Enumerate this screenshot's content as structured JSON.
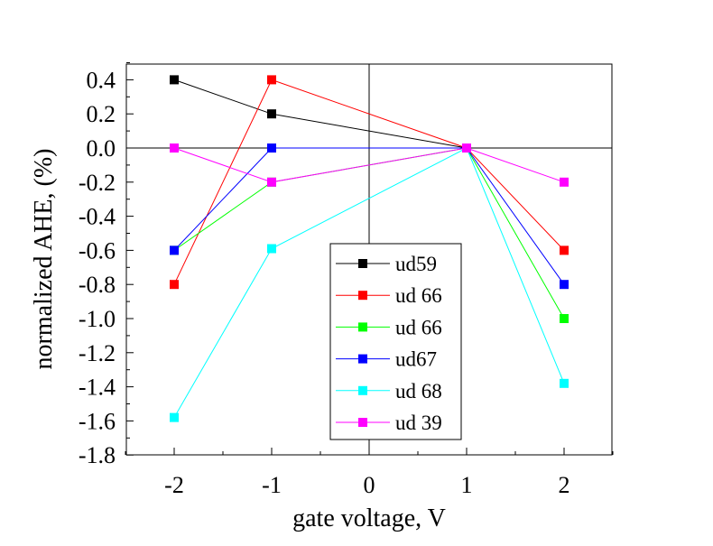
{
  "chart_data": {
    "type": "line",
    "title": "",
    "xlabel": "gate voltage, V",
    "ylabel": "normalized AHE, (%)",
    "xlim": [
      -2.5,
      2.5
    ],
    "ylim": [
      -1.8,
      0.5
    ],
    "xticks": [
      -2,
      -1,
      0,
      1,
      2
    ],
    "xtick_labels": [
      "-2",
      "-1",
      "0",
      "1",
      "2"
    ],
    "yticks": [
      0.4,
      0.2,
      0.0,
      -0.2,
      -0.4,
      -0.6,
      -0.8,
      -1.0,
      -1.2,
      -1.4,
      -1.6,
      -1.8
    ],
    "ytick_labels": [
      "0.4",
      "0.2",
      "0.0",
      "-0.2",
      "-0.4",
      "-0.6",
      "-0.8",
      "-1.0",
      "-1.2",
      "-1.4",
      "-1.6",
      "-1.8"
    ],
    "grid": false,
    "legend_position": "bottom-center",
    "series": [
      {
        "name": "ud59",
        "color": "#000000",
        "marker": "square",
        "x": [
          -2,
          -1,
          1,
          2
        ],
        "y": [
          0.4,
          0.2,
          0.0,
          null
        ]
      },
      {
        "name": "ud 66",
        "color": "#ff0000",
        "marker": "square",
        "x": [
          -2,
          -1,
          1,
          2
        ],
        "y": [
          -0.8,
          0.4,
          0.0,
          -0.6
        ]
      },
      {
        "name": "ud 66",
        "color": "#00ff00",
        "marker": "square",
        "x": [
          -2,
          -1,
          1,
          2
        ],
        "y": [
          -0.6,
          -0.2,
          0.0,
          -1.0
        ]
      },
      {
        "name": "ud67",
        "color": "#0000ff",
        "marker": "square",
        "x": [
          -2,
          -1,
          1,
          2
        ],
        "y": [
          -0.6,
          0.0,
          0.0,
          -0.8
        ]
      },
      {
        "name": "ud 68",
        "color": "#00ffff",
        "marker": "square",
        "x": [
          -2,
          -1,
          1,
          2
        ],
        "y": [
          -1.58,
          -0.59,
          0.0,
          -1.38
        ]
      },
      {
        "name": "ud 39",
        "color": "#ff00ff",
        "marker": "square",
        "x": [
          -2,
          -1,
          1,
          2
        ],
        "y": [
          0.0,
          -0.2,
          0.0,
          -0.2
        ]
      }
    ]
  }
}
